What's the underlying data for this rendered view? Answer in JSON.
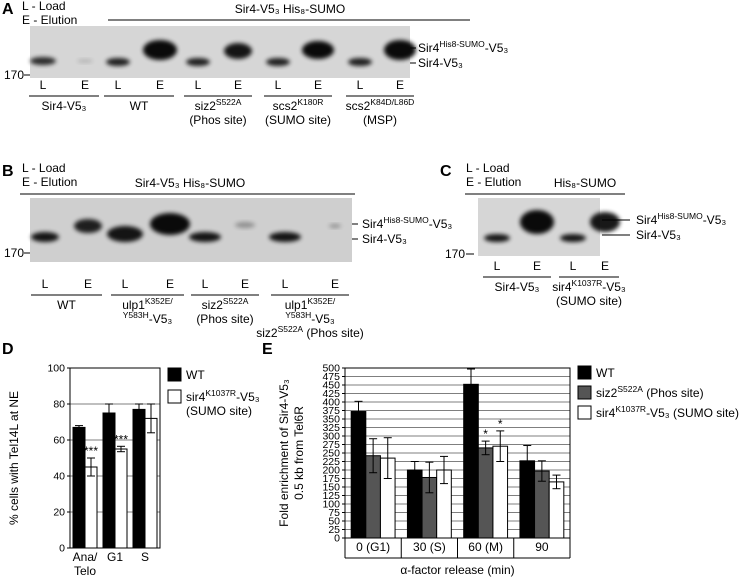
{
  "panel_a": {
    "letter": "A",
    "legend": [
      "L - Load",
      "E - Elution"
    ],
    "header": "Sir4-V5₃ His₈-SUMO",
    "marker": "170",
    "bands": [
      [
        {
          "t": "Sir4"
        },
        {
          "sup": "His8-SUMO"
        },
        {
          "t": "-V5₃"
        }
      ],
      [
        {
          "t": "Sir4-V5₃"
        }
      ]
    ],
    "lanes": [
      "L",
      "E",
      "L",
      "E",
      "L",
      "E",
      "L",
      "E",
      "L",
      "E"
    ],
    "groups": [
      [
        [
          {
            "t": "Sir4-V5₃"
          }
        ]
      ],
      [
        [
          {
            "t": "WT"
          }
        ]
      ],
      [
        [
          {
            "t": "siz2"
          },
          {
            "sup": "S522A"
          }
        ],
        [
          {
            "t": "(Phos site)"
          }
        ]
      ],
      [
        [
          {
            "t": "scs2"
          },
          {
            "sup": "K180R"
          }
        ],
        [
          {
            "t": "(SUMO site)"
          }
        ]
      ],
      [
        [
          {
            "t": "scs2"
          },
          {
            "sup": "K84D/L86D"
          }
        ],
        [
          {
            "t": "(MSP)"
          }
        ]
      ]
    ]
  },
  "panel_b": {
    "letter": "B",
    "legend": [
      "L - Load",
      "E - Elution"
    ],
    "header": "Sir4-V5₃ His₈-SUMO",
    "marker": "170",
    "bands": [
      [
        {
          "t": "Sir4"
        },
        {
          "sup": "His8-SUMO"
        },
        {
          "t": "-V5₃"
        }
      ],
      [
        {
          "t": "Sir4-V5₃"
        }
      ]
    ],
    "lanes": [
      "L",
      "E",
      "L",
      "E",
      "L",
      "E",
      "L",
      "E"
    ],
    "groups": [
      [
        [
          {
            "t": "WT"
          }
        ]
      ],
      [
        [
          {
            "t": "ulp1"
          },
          {
            "sup": "K352E/"
          }
        ],
        [
          {
            "sup": "Y583H"
          },
          {
            "t": "-V5₃"
          }
        ]
      ],
      [
        [
          {
            "t": "siz2"
          },
          {
            "sup": "S522A"
          }
        ],
        [
          {
            "t": "(Phos site)"
          }
        ]
      ],
      [
        [
          {
            "t": "ulp1"
          },
          {
            "sup": "K352E/"
          }
        ],
        [
          {
            "sup": "Y583H"
          },
          {
            "t": "-V5₃"
          }
        ],
        [
          {
            "t": "siz2"
          },
          {
            "sup": "S522A"
          },
          {
            "t": " (Phos site)"
          }
        ]
      ]
    ]
  },
  "panel_c": {
    "letter": "C",
    "legend": [
      "L - Load",
      "E - Elution"
    ],
    "header": "His₈-SUMO",
    "marker": "170",
    "bands": [
      [
        {
          "t": "Sir4"
        },
        {
          "sup": "His8-SUMO"
        },
        {
          "t": "-V5₃"
        }
      ],
      [
        {
          "t": "Sir4-V5₃"
        }
      ]
    ],
    "lanes": [
      "L",
      "E",
      "L",
      "E"
    ],
    "groups": [
      [
        [
          {
            "t": "Sir4-V5₃"
          }
        ]
      ],
      [
        [
          {
            "t": "sir4"
          },
          {
            "sup": "K1037R"
          },
          {
            "t": "-V5₃"
          }
        ],
        [
          {
            "t": "(SUMO site)"
          }
        ]
      ]
    ]
  },
  "chart_data": [
    {
      "type": "bar",
      "letter": "D",
      "ylabel": [
        "% cells with Tel14L at NE"
      ],
      "categories": [
        "Ana/\nTelo",
        "G1",
        "S"
      ],
      "series": [
        {
          "name": [
            [
              {
                "t": "WT"
              }
            ]
          ],
          "color": "#000000",
          "values": [
            67,
            75,
            77
          ],
          "errors": [
            1,
            5,
            3
          ],
          "significance": [
            null,
            null,
            null
          ]
        },
        {
          "name": [
            [
              {
                "t": "sir4"
              },
              {
                "sup": "K1037R"
              },
              {
                "t": "-V5₃"
              }
            ],
            [
              {
                "t": "(SUMO site)"
              }
            ]
          ],
          "color": "#ffffff",
          "values": [
            45,
            55,
            72
          ],
          "errors": [
            5,
            1.5,
            8
          ],
          "significance": [
            "***",
            "***",
            null
          ]
        }
      ],
      "ylim": [
        0,
        100
      ],
      "yticks": [
        0,
        20,
        40,
        60,
        80,
        100
      ],
      "grid": true
    },
    {
      "type": "bar",
      "letter": "E",
      "ylabel": [
        "Fold enrichment of Sir4-V5₃",
        "0.5 kb from Tel6R"
      ],
      "xlabel": "α-factor release (min)",
      "categories": [
        "0 (G1)",
        "30 (S)",
        "60 (M)",
        "90"
      ],
      "series": [
        {
          "name": [
            [
              {
                "t": "WT"
              }
            ]
          ],
          "color": "#000000",
          "values": [
            372,
            200,
            452,
            227
          ],
          "errors": [
            30,
            25,
            45,
            45
          ],
          "significance": [
            null,
            null,
            null,
            null
          ]
        },
        {
          "name": [
            [
              {
                "t": "siz2"
              },
              {
                "sup": "S522A"
              },
              {
                "t": " (Phos site)"
              }
            ]
          ],
          "color": "#555555",
          "values": [
            242,
            178,
            265,
            197
          ],
          "errors": [
            50,
            45,
            20,
            30
          ],
          "significance": [
            null,
            null,
            "*",
            null
          ]
        },
        {
          "name": [
            [
              {
                "t": "sir4"
              },
              {
                "sup": "K1037R"
              },
              {
                "t": "-V5₃ (SUMO site)"
              }
            ]
          ],
          "color": "#ffffff",
          "values": [
            235,
            200,
            270,
            165
          ],
          "errors": [
            60,
            40,
            45,
            20
          ],
          "significance": [
            null,
            null,
            "*",
            null
          ]
        }
      ],
      "ylim": [
        0,
        500
      ],
      "yticks": [
        0,
        25,
        50,
        75,
        100,
        125,
        150,
        175,
        200,
        225,
        250,
        275,
        300,
        325,
        350,
        375,
        400,
        425,
        450,
        475,
        500
      ],
      "grid": true
    }
  ]
}
